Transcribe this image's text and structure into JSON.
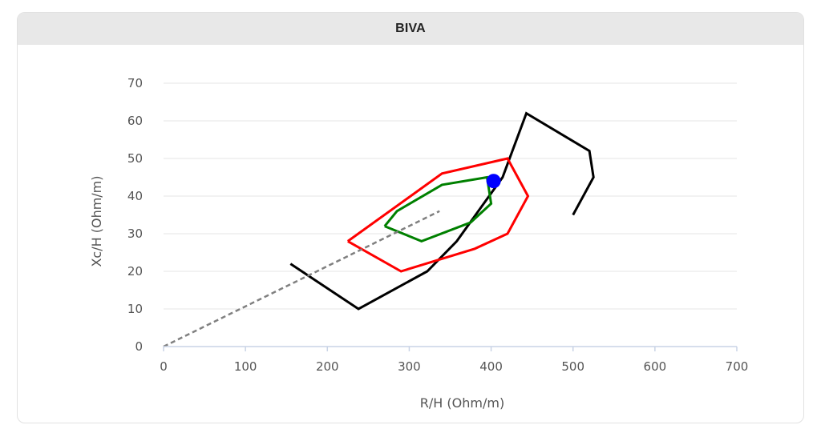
{
  "panel": {
    "title": "BIVA"
  },
  "chart_data": {
    "type": "scatter",
    "title": "BIVA",
    "xlabel": "R/H (Ohm/m)",
    "ylabel": "Xc/H (Ohm/m)",
    "xlim": [
      0,
      700
    ],
    "ylim": [
      0,
      70
    ],
    "x_ticks": [
      "0",
      "100",
      "200",
      "300",
      "400",
      "500",
      "600",
      "700"
    ],
    "y_ticks": [
      "0",
      "10",
      "20",
      "30",
      "40",
      "50",
      "60",
      "70"
    ],
    "grid": "horizontal",
    "legend": "none",
    "ellipses": [
      {
        "color": "#000000",
        "x": [
          155,
          238,
          322,
          358,
          414,
          443,
          520,
          525,
          500
        ],
        "y": [
          22,
          10,
          20,
          28,
          45,
          62,
          52,
          45,
          35
        ]
      },
      {
        "color": "#ff0000",
        "x": [
          225,
          290,
          380,
          420,
          445,
          420,
          340,
          225
        ],
        "y": [
          28,
          20,
          26,
          30,
          40,
          50,
          46,
          28
        ]
      },
      {
        "color": "#008000",
        "x": [
          270,
          315,
          375,
          400,
          395,
          340,
          285,
          270
        ],
        "y": [
          32,
          28,
          33,
          38,
          45,
          43,
          36,
          32
        ]
      }
    ],
    "series": [
      {
        "type": "dashed-line",
        "color": "#808080",
        "x": [
          0,
          337
        ],
        "y": [
          0,
          36
        ]
      },
      {
        "type": "point",
        "color": "#0000ff",
        "x": [
          403
        ],
        "y": [
          44
        ]
      }
    ]
  }
}
